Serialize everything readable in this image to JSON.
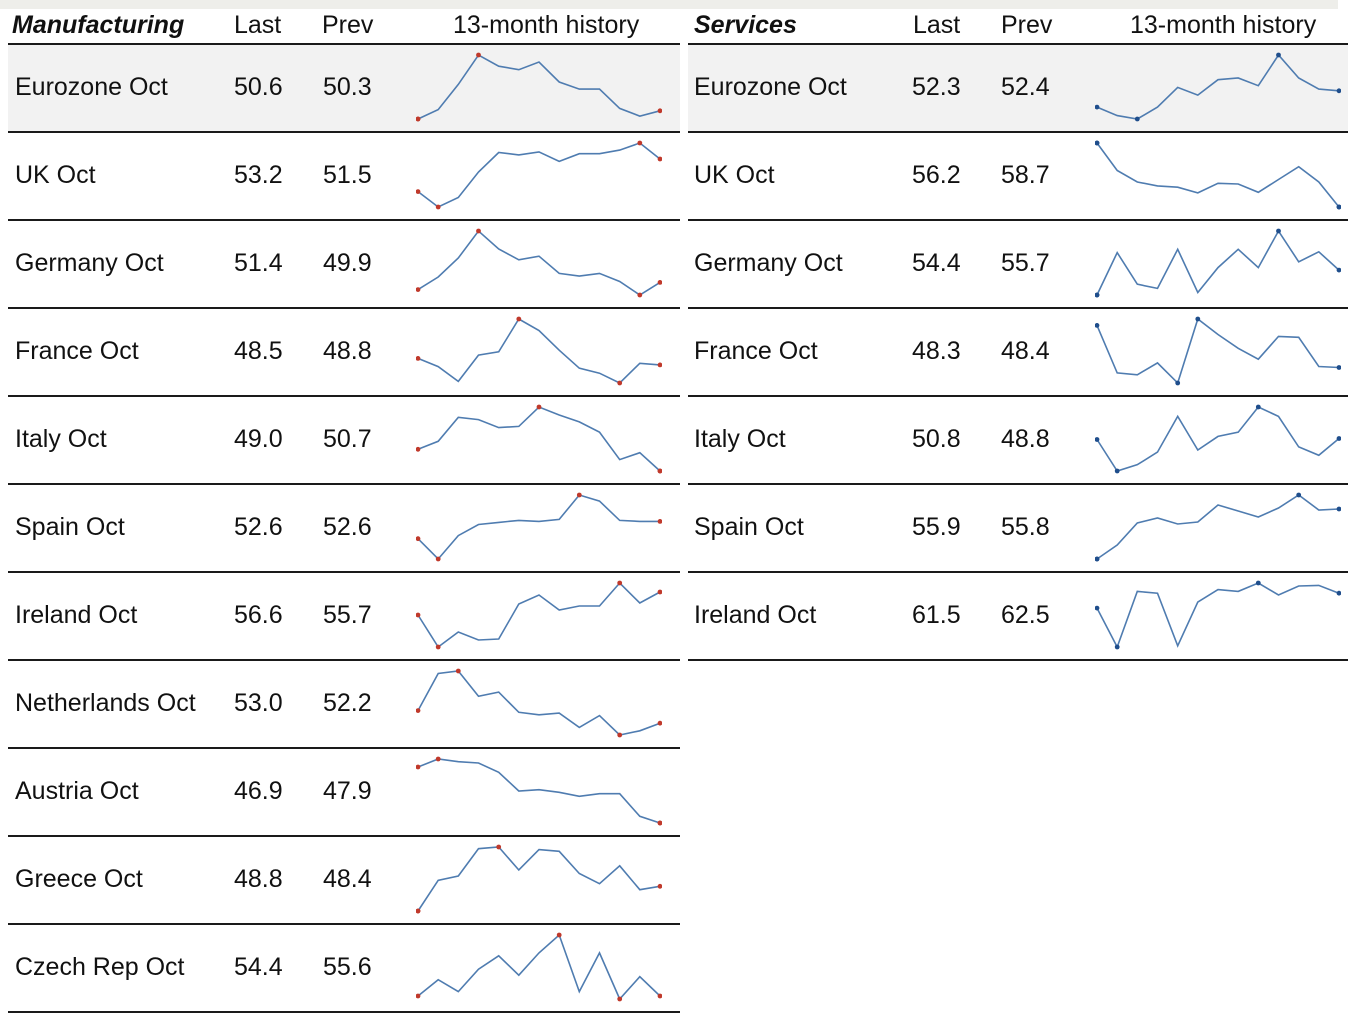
{
  "chart_data": [
    {
      "type": "table",
      "title": "Manufacturing",
      "columns": [
        "Last",
        "Prev",
        "13-month history"
      ],
      "rows": [
        {
          "label": "Eurozone Oct",
          "last": "50.6",
          "prev": "50.3",
          "history": [
            49.9,
            50.06,
            50.49,
            50.99,
            50.8,
            50.74,
            50.87,
            50.53,
            50.41,
            50.41,
            50.08,
            49.95,
            50.04
          ]
        },
        {
          "label": "UK Oct",
          "last": "53.2",
          "prev": "51.5",
          "history": [
            51.21,
            50.95,
            51.11,
            51.54,
            51.87,
            51.83,
            51.88,
            51.72,
            51.85,
            51.85,
            51.91,
            52.03,
            51.76
          ]
        },
        {
          "label": "Germany Oct",
          "last": "51.4",
          "prev": "49.9",
          "history": [
            50.51,
            50.65,
            50.86,
            51.16,
            50.96,
            50.84,
            50.88,
            50.69,
            50.66,
            50.69,
            50.6,
            50.45,
            50.59
          ]
        },
        {
          "label": "France Oct",
          "last": "48.5",
          "prev": "48.8",
          "history": [
            49.1,
            49.05,
            48.96,
            49.12,
            49.14,
            49.34,
            49.27,
            49.15,
            49.04,
            49.01,
            48.95,
            49.07,
            49.06
          ]
        },
        {
          "label": "Italy Oct",
          "last": "49.0",
          "prev": "50.7",
          "history": [
            50.01,
            50.08,
            50.29,
            50.27,
            50.2,
            50.21,
            50.38,
            50.31,
            50.25,
            50.16,
            49.92,
            49.98,
            49.82
          ]
        },
        {
          "label": "Spain Oct",
          "last": "52.6",
          "prev": "52.6",
          "history": [
            51.99,
            51.79,
            52.02,
            52.13,
            52.15,
            52.17,
            52.16,
            52.18,
            52.42,
            52.36,
            52.17,
            52.16,
            52.16
          ]
        },
        {
          "label": "Ireland Oct",
          "last": "56.6",
          "prev": "55.7",
          "history": [
            55.71,
            55.39,
            55.54,
            55.46,
            55.47,
            55.82,
            55.91,
            55.76,
            55.8,
            55.8,
            56.03,
            55.83,
            55.94
          ]
        },
        {
          "label": "Netherlands Oct",
          "last": "53.0",
          "prev": "52.2",
          "history": [
            52.21,
            52.65,
            52.68,
            52.38,
            52.43,
            52.19,
            52.16,
            52.18,
            52.01,
            52.15,
            51.92,
            51.97,
            52.06
          ]
        },
        {
          "label": "Austria Oct",
          "last": "46.9",
          "prev": "47.9",
          "history": [
            47.28,
            47.34,
            47.32,
            47.31,
            47.24,
            47.1,
            47.11,
            47.09,
            47.06,
            47.08,
            47.08,
            46.91,
            46.86
          ]
        },
        {
          "label": "Greece Oct",
          "last": "48.8",
          "prev": "48.4",
          "history": [
            48.04,
            48.4,
            48.45,
            48.77,
            48.79,
            48.52,
            48.76,
            48.74,
            48.48,
            48.36,
            48.57,
            48.29,
            48.33
          ]
        },
        {
          "label": "Czech Rep Oct",
          "last": "54.4",
          "prev": "55.6",
          "history": [
            55.03,
            55.14,
            55.06,
            55.21,
            55.3,
            55.17,
            55.32,
            55.44,
            55.06,
            55.32,
            55.01,
            55.16,
            55.03
          ]
        }
      ]
    },
    {
      "type": "table",
      "title": "Services",
      "columns": [
        "Last",
        "Prev",
        "13-month history"
      ],
      "rows": [
        {
          "label": "Eurozone Oct",
          "last": "52.3",
          "prev": "52.4",
          "history": [
            51.75,
            51.65,
            51.61,
            51.75,
            51.98,
            51.89,
            52.07,
            52.09,
            52.0,
            52.36,
            52.09,
            51.96,
            51.94
          ]
        },
        {
          "label": "UK Oct",
          "last": "56.2",
          "prev": "58.7",
          "history": [
            58.1,
            57.67,
            57.49,
            57.43,
            57.41,
            57.32,
            57.47,
            57.46,
            57.33,
            57.53,
            57.73,
            57.49,
            57.1
          ]
        },
        {
          "label": "Germany Oct",
          "last": "54.4",
          "prev": "55.7",
          "history": [
            54.82,
            55.33,
            54.95,
            54.9,
            55.37,
            54.85,
            55.15,
            55.37,
            55.15,
            55.59,
            55.22,
            55.34,
            55.12
          ]
        },
        {
          "label": "France Oct",
          "last": "48.3",
          "prev": "48.4",
          "history": [
            49.07,
            48.55,
            48.53,
            48.66,
            48.44,
            49.14,
            48.97,
            48.82,
            48.7,
            48.95,
            48.94,
            48.62,
            48.61
          ]
        },
        {
          "label": "Italy Oct",
          "last": "50.8",
          "prev": "48.8",
          "history": [
            49.28,
            48.98,
            49.04,
            49.16,
            49.5,
            49.18,
            49.31,
            49.35,
            49.59,
            49.5,
            49.21,
            49.13,
            49.29
          ]
        },
        {
          "label": "Spain Oct",
          "last": "55.9",
          "prev": "55.8",
          "history": [
            55.4,
            55.54,
            55.76,
            55.81,
            55.75,
            55.77,
            55.94,
            55.88,
            55.82,
            55.91,
            56.04,
            55.89,
            55.9
          ]
        },
        {
          "label": "Ireland Oct",
          "last": "61.5",
          "prev": "62.5",
          "history": [
            62.48,
            61.83,
            62.76,
            62.73,
            61.85,
            62.58,
            62.79,
            62.76,
            62.9,
            62.7,
            62.85,
            62.86,
            62.73
          ]
        }
      ]
    }
  ],
  "colors": {
    "line": "#4f7cb0",
    "mfg_marker": "#c0392b",
    "svc_marker": "#1f4e8c",
    "svc_marker_high": "#1f4e8c",
    "divider": "#1a1a1a",
    "shade": "#f2f2f2"
  }
}
